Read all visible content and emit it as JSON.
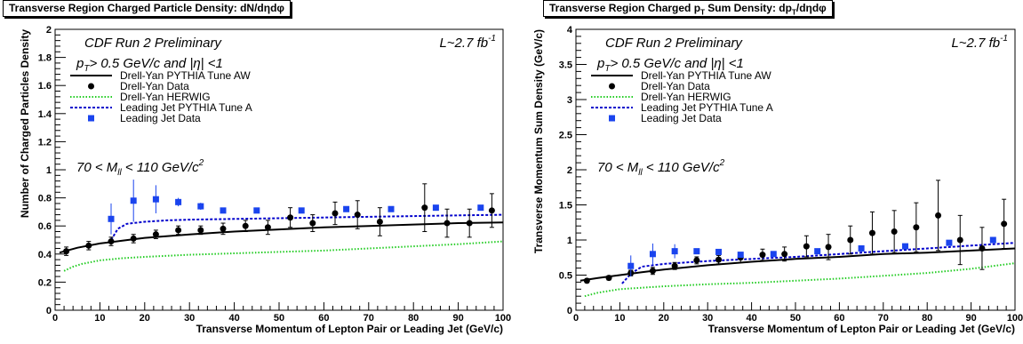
{
  "chart_data": [
    {
      "type": "scatter",
      "title": "Transverse Region Charged Particle Density: dN/dηdφ",
      "xlabel": "Transverse Momentum of Lepton Pair or Leading Jet (GeV/c)",
      "ylabel": "Number of Charged Particles Density",
      "xlim": [
        0,
        100
      ],
      "ylim": [
        0,
        2
      ],
      "xticks": [
        0,
        10,
        20,
        30,
        40,
        50,
        60,
        70,
        80,
        90,
        100
      ],
      "yticks": [
        "0",
        "0.2",
        "0.4",
        "0.6",
        "0.8",
        "1",
        "1.2",
        "1.4",
        "1.6",
        "1.8",
        "2"
      ],
      "yticks_num": [
        0,
        0.2,
        0.4,
        0.6,
        0.8,
        1,
        1.2,
        1.4,
        1.6,
        1.8,
        2
      ],
      "annotations": {
        "run": "CDF Run 2 Preliminary",
        "lumi_main": "L~2.7 fb",
        "lumi_sup": "-1",
        "cut_main": "p",
        "cut_sub": "T",
        "cut_rest": "> 0.5  GeV/c and |η| <1",
        "mass_pre": "70 < M",
        "mass_sub": "ll",
        "mass_post": " < 110 GeV/c",
        "mass_sup": "2"
      },
      "legend": [
        "Drell-Yan PYTHIA Tune AW",
        "Drell-Yan Data",
        "Drell-Yan HERWIG",
        "Leading Jet PYTHIA Tune A",
        "Leading Jet Data"
      ],
      "series": [
        {
          "name": "Drell-Yan PYTHIA Tune AW",
          "style": "line",
          "color": "#000000",
          "x": [
            1,
            5,
            10,
            15,
            20,
            30,
            40,
            50,
            60,
            70,
            80,
            90,
            100
          ],
          "y": [
            0.41,
            0.445,
            0.475,
            0.495,
            0.515,
            0.54,
            0.56,
            0.575,
            0.59,
            0.6,
            0.61,
            0.62,
            0.625
          ]
        },
        {
          "name": "Drell-Yan HERWIG",
          "style": "dotted",
          "color": "#22cc22",
          "x": [
            2,
            4,
            6,
            10,
            15,
            20,
            30,
            40,
            50,
            60,
            70,
            80,
            90,
            100
          ],
          "y": [
            0.28,
            0.31,
            0.33,
            0.355,
            0.37,
            0.38,
            0.395,
            0.405,
            0.415,
            0.425,
            0.44,
            0.455,
            0.47,
            0.49
          ]
        },
        {
          "name": "Leading Jet PYTHIA Tune A",
          "style": "dashed",
          "color": "#0000cc",
          "x": [
            12.5,
            14,
            16,
            20,
            25,
            30,
            40,
            50,
            60,
            70,
            80,
            90,
            100
          ],
          "y": [
            0.5,
            0.58,
            0.615,
            0.63,
            0.64,
            0.645,
            0.65,
            0.655,
            0.66,
            0.665,
            0.67,
            0.675,
            0.68
          ]
        },
        {
          "name": "Drell-Yan Data",
          "style": "circle",
          "color": "#000000",
          "x": [
            2.5,
            7.5,
            12.5,
            17.5,
            22.5,
            27.5,
            32.5,
            37.5,
            42.5,
            47.5,
            52.5,
            57.5,
            62.5,
            67.5,
            72.5,
            82.5,
            87.5,
            92.5,
            97.5
          ],
          "y": [
            0.42,
            0.46,
            0.49,
            0.51,
            0.54,
            0.57,
            0.57,
            0.58,
            0.6,
            0.59,
            0.66,
            0.62,
            0.69,
            0.68,
            0.63,
            0.73,
            0.62,
            0.62,
            0.71
          ],
          "err": [
            0.03,
            0.03,
            0.03,
            0.03,
            0.03,
            0.03,
            0.03,
            0.04,
            0.04,
            0.05,
            0.07,
            0.06,
            0.08,
            0.1,
            0.1,
            0.17,
            0.1,
            0.1,
            0.12
          ]
        },
        {
          "name": "Leading Jet Data",
          "style": "square",
          "color": "#1a44ee",
          "x": [
            12.5,
            17.5,
            22.5,
            27.5,
            32.5,
            37.5,
            45,
            55,
            65,
            75,
            85,
            95
          ],
          "y": [
            0.65,
            0.78,
            0.79,
            0.77,
            0.74,
            0.71,
            0.71,
            0.71,
            0.72,
            0.72,
            0.73,
            0.73
          ],
          "err": [
            0.11,
            0.15,
            0.1,
            0.03,
            0.025,
            0.02,
            0.02,
            0.02,
            0.02,
            0.02,
            0.02,
            0.02
          ]
        }
      ]
    },
    {
      "type": "scatter",
      "title": "Transverse Region Charged p",
      "title_sub": "T",
      "title_rest": " Sum Density: dp",
      "title_sub2": "T",
      "title_end": "/dηdφ",
      "xlabel": "Transverse Momentum of Lepton Pair or Leading Jet (GeV/c)",
      "ylabel": "Transverse Momentum Sum Density (GeV/c)",
      "xlim": [
        0,
        100
      ],
      "ylim": [
        0,
        4
      ],
      "xticks": [
        0,
        10,
        20,
        30,
        40,
        50,
        60,
        70,
        80,
        90,
        100
      ],
      "yticks": [
        "0",
        "0.5",
        "1",
        "1.5",
        "2",
        "2.5",
        "3",
        "3.5",
        "4"
      ],
      "yticks_num": [
        0,
        0.5,
        1,
        1.5,
        2,
        2.5,
        3,
        3.5,
        4
      ],
      "annotations": {
        "run": "CDF Run 2 Preliminary",
        "lumi_main": "L~2.7 fb",
        "lumi_sup": "-1",
        "cut_main": "p",
        "cut_sub": "T",
        "cut_rest": "> 0.5  GeV/c and |η| <1",
        "mass_pre": "70 < M",
        "mass_sub": "ll",
        "mass_post": " < 110 GeV/c",
        "mass_sup": "2"
      },
      "legend": [
        "Drell-Yan PYTHIA Tune AW",
        "Drell-Yan Data",
        "Drell-Yan HERWIG",
        "Leading Jet PYTHIA Tune A",
        "Leading Jet Data"
      ],
      "series": [
        {
          "name": "Drell-Yan PYTHIA Tune AW",
          "style": "line",
          "color": "#000000",
          "x": [
            1,
            5,
            10,
            15,
            20,
            30,
            40,
            50,
            60,
            70,
            80,
            90,
            100
          ],
          "y": [
            0.42,
            0.46,
            0.5,
            0.54,
            0.58,
            0.64,
            0.69,
            0.73,
            0.76,
            0.8,
            0.82,
            0.85,
            0.88
          ]
        },
        {
          "name": "Drell-Yan HERWIG",
          "style": "dotted",
          "color": "#22cc22",
          "x": [
            2,
            5,
            10,
            15,
            20,
            30,
            40,
            50,
            60,
            70,
            80,
            90,
            100
          ],
          "y": [
            0.2,
            0.25,
            0.3,
            0.32,
            0.34,
            0.37,
            0.39,
            0.42,
            0.45,
            0.49,
            0.53,
            0.59,
            0.67
          ]
        },
        {
          "name": "Leading Jet PYTHIA Tune A",
          "style": "dashed",
          "color": "#0000cc",
          "x": [
            10.5,
            12.5,
            15,
            20,
            30,
            40,
            50,
            60,
            70,
            80,
            90,
            100
          ],
          "y": [
            0.38,
            0.52,
            0.62,
            0.66,
            0.7,
            0.73,
            0.76,
            0.8,
            0.84,
            0.88,
            0.92,
            0.96
          ]
        },
        {
          "name": "Drell-Yan Data",
          "style": "circle",
          "color": "#000000",
          "x": [
            2.5,
            7.5,
            12.5,
            17.5,
            22.5,
            27.5,
            32.5,
            37.5,
            42.5,
            47.5,
            52.5,
            57.5,
            62.5,
            67.5,
            72.5,
            77.5,
            82.5,
            87.5,
            92.5,
            97.5
          ],
          "y": [
            0.42,
            0.46,
            0.53,
            0.56,
            0.63,
            0.71,
            0.72,
            0.75,
            0.79,
            0.8,
            0.91,
            0.9,
            1.0,
            1.1,
            1.12,
            1.18,
            1.35,
            1.0,
            0.88,
            1.23
          ],
          "err": [
            0.03,
            0.03,
            0.04,
            0.05,
            0.05,
            0.05,
            0.06,
            0.07,
            0.08,
            0.1,
            0.15,
            0.18,
            0.2,
            0.3,
            0.3,
            0.35,
            0.5,
            0.35,
            0.3,
            0.35
          ]
        },
        {
          "name": "Leading Jet Data",
          "style": "square",
          "color": "#1a44ee",
          "x": [
            12.5,
            17.5,
            22.5,
            27.5,
            32.5,
            37.5,
            45,
            55,
            65,
            75,
            85,
            95
          ],
          "y": [
            0.63,
            0.8,
            0.84,
            0.84,
            0.83,
            0.79,
            0.8,
            0.84,
            0.88,
            0.91,
            0.96,
            1.0
          ],
          "err": [
            0.15,
            0.15,
            0.1,
            0.03,
            0.03,
            0.03,
            0.03,
            0.03,
            0.03,
            0.03,
            0.03,
            0.03
          ]
        }
      ]
    }
  ]
}
